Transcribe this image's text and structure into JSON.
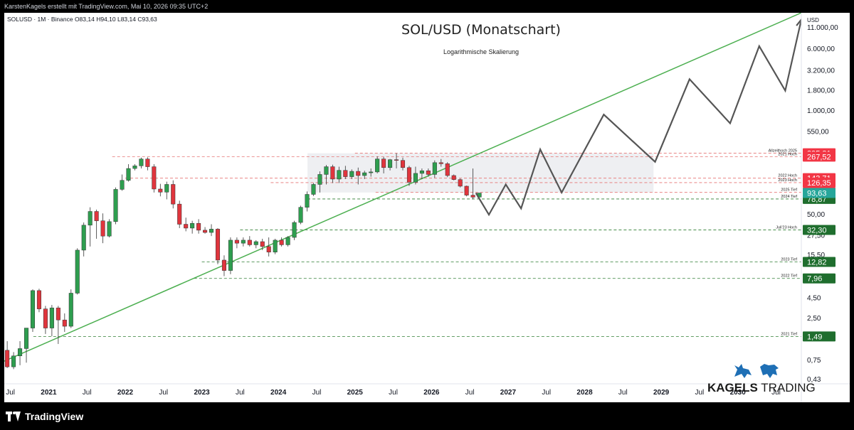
{
  "header": {
    "text": "KarstenKagels erstellt mit TradingView.com, Mai 10, 2026 09:35 UTC+2"
  },
  "chart_data": {
    "type": "candlestick",
    "symbol_line": "SOLUSD · 1M · Binance  O83,14  H94,10  L83,14  C93,63",
    "title": "SOL/USD (Monatschart)",
    "subtitle": "Logarithmische Skalierung",
    "currency": "USD",
    "yscale": "log",
    "ylim": [
      0.38,
      17000
    ],
    "xlim": [
      2020.42,
      2030.83
    ],
    "y_ticks": [
      {
        "v": 11000,
        "label": "11.000,00"
      },
      {
        "v": 6000,
        "label": "6.000,00"
      },
      {
        "v": 3200,
        "label": "3.200,00"
      },
      {
        "v": 1800,
        "label": "1.800,00"
      },
      {
        "v": 1000,
        "label": "1.000,00"
      },
      {
        "v": 550,
        "label": "550,00"
      },
      {
        "v": 50,
        "label": "50,00"
      },
      {
        "v": 27.5,
        "label": "27,50"
      },
      {
        "v": 15.5,
        "label": "15,50"
      },
      {
        "v": 4.5,
        "label": "4,50"
      },
      {
        "v": 2.5,
        "label": "2,50"
      },
      {
        "v": 0.75,
        "label": "0,75"
      },
      {
        "v": 0.43,
        "label": "0,43"
      }
    ],
    "x_ticks": [
      {
        "t": 2020.5,
        "label": "Jul",
        "bold": false
      },
      {
        "t": 2021.0,
        "label": "2021",
        "bold": true
      },
      {
        "t": 2021.5,
        "label": "Jul",
        "bold": false
      },
      {
        "t": 2022.0,
        "label": "2022",
        "bold": true
      },
      {
        "t": 2022.5,
        "label": "Jul",
        "bold": false
      },
      {
        "t": 2023.0,
        "label": "2023",
        "bold": true
      },
      {
        "t": 2023.5,
        "label": "Jul",
        "bold": false
      },
      {
        "t": 2024.0,
        "label": "2024",
        "bold": true
      },
      {
        "t": 2024.5,
        "label": "Jul",
        "bold": false
      },
      {
        "t": 2025.0,
        "label": "2025",
        "bold": true
      },
      {
        "t": 2025.5,
        "label": "Jul",
        "bold": false
      },
      {
        "t": 2026.0,
        "label": "2026",
        "bold": true
      },
      {
        "t": 2026.5,
        "label": "Jul",
        "bold": false
      },
      {
        "t": 2027.0,
        "label": "2027",
        "bold": true
      },
      {
        "t": 2027.5,
        "label": "Jul",
        "bold": false
      },
      {
        "t": 2028.0,
        "label": "2028",
        "bold": true
      },
      {
        "t": 2028.5,
        "label": "Jul",
        "bold": false
      },
      {
        "t": 2029.0,
        "label": "2029",
        "bold": true
      },
      {
        "t": 2029.5,
        "label": "Jul",
        "bold": false
      },
      {
        "t": 2030.0,
        "label": "2030",
        "bold": true
      },
      {
        "t": 2030.5,
        "label": "Jul",
        "bold": false
      }
    ],
    "candles": [
      {
        "t": "2020-05",
        "o": 0.6,
        "h": 1.6,
        "l": 0.55,
        "c": 1.0
      },
      {
        "t": "2020-06",
        "o": 1.0,
        "h": 1.3,
        "l": 0.6,
        "c": 0.62
      },
      {
        "t": "2020-07",
        "o": 0.62,
        "h": 0.95,
        "l": 0.58,
        "c": 0.85
      },
      {
        "t": "2020-08",
        "o": 0.85,
        "h": 1.3,
        "l": 0.65,
        "c": 1.05
      },
      {
        "t": "2020-09",
        "o": 1.05,
        "h": 1.9,
        "l": 0.7,
        "c": 1.9
      },
      {
        "t": "2020-10",
        "o": 1.9,
        "h": 5.8,
        "l": 1.7,
        "c": 5.6
      },
      {
        "t": "2020-11",
        "o": 5.6,
        "h": 5.9,
        "l": 3.0,
        "c": 3.3
      },
      {
        "t": "2020-12",
        "o": 3.3,
        "h": 3.6,
        "l": 1.6,
        "c": 1.9
      },
      {
        "t": "2021-01",
        "o": 1.9,
        "h": 3.7,
        "l": 1.5,
        "c": 3.4
      },
      {
        "t": "2021-02",
        "o": 3.4,
        "h": 3.6,
        "l": 1.2,
        "c": 2.4
      },
      {
        "t": "2021-03",
        "o": 2.4,
        "h": 2.9,
        "l": 1.7,
        "c": 2.0
      },
      {
        "t": "2021-04",
        "o": 2.0,
        "h": 5.8,
        "l": 1.9,
        "c": 5.2
      },
      {
        "t": "2021-05",
        "o": 5.2,
        "h": 19,
        "l": 5.0,
        "c": 18
      },
      {
        "t": "2021-06",
        "o": 18,
        "h": 40,
        "l": 15,
        "c": 37
      },
      {
        "t": "2021-07",
        "o": 37,
        "h": 62,
        "l": 20,
        "c": 55
      },
      {
        "t": "2021-08",
        "o": 55,
        "h": 58,
        "l": 25,
        "c": 42
      },
      {
        "t": "2021-09",
        "o": 42,
        "h": 52,
        "l": 22,
        "c": 27
      },
      {
        "t": "2021-10",
        "o": 27,
        "h": 44,
        "l": 26,
        "c": 41
      },
      {
        "t": "2021-11",
        "o": 41,
        "h": 110,
        "l": 38,
        "c": 104
      },
      {
        "t": "2021-12",
        "o": 104,
        "h": 160,
        "l": 100,
        "c": 135
      },
      {
        "t": "2022-01",
        "o": 135,
        "h": 215,
        "l": 130,
        "c": 190
      },
      {
        "t": "2022-02",
        "o": 190,
        "h": 215,
        "l": 180,
        "c": 205
      },
      {
        "t": "2022-03",
        "o": 205,
        "h": 260,
        "l": 190,
        "c": 250
      },
      {
        "t": "2022-04",
        "o": 250,
        "h": 262,
        "l": 180,
        "c": 200
      },
      {
        "t": "2022-05",
        "o": 200,
        "h": 215,
        "l": 95,
        "c": 105
      },
      {
        "t": "2022-06",
        "o": 105,
        "h": 122,
        "l": 85,
        "c": 96
      },
      {
        "t": "2022-07",
        "o": 96,
        "h": 130,
        "l": 78,
        "c": 120
      },
      {
        "t": "2022-08",
        "o": 120,
        "h": 135,
        "l": 60,
        "c": 68
      },
      {
        "t": "2022-09",
        "o": 68,
        "h": 75,
        "l": 34,
        "c": 38
      },
      {
        "t": "2022-10",
        "o": 38,
        "h": 46,
        "l": 31,
        "c": 34
      },
      {
        "t": "2022-11",
        "o": 34,
        "h": 42,
        "l": 29,
        "c": 39
      },
      {
        "t": "2022-12",
        "o": 39,
        "h": 44,
        "l": 29,
        "c": 32
      },
      {
        "t": "2023-01",
        "o": 32,
        "h": 35,
        "l": 29,
        "c": 30
      },
      {
        "t": "2023-02",
        "o": 30,
        "h": 38,
        "l": 27,
        "c": 33
      },
      {
        "t": "2023-03",
        "o": 33,
        "h": 34,
        "l": 12,
        "c": 13.5
      },
      {
        "t": "2023-04",
        "o": 13.5,
        "h": 15.5,
        "l": 8.5,
        "c": 10
      },
      {
        "t": "2023-05",
        "o": 10,
        "h": 26,
        "l": 9,
        "c": 24
      },
      {
        "t": "2023-06",
        "o": 24,
        "h": 26,
        "l": 19,
        "c": 22
      },
      {
        "t": "2023-07",
        "o": 22,
        "h": 26,
        "l": 20,
        "c": 24
      },
      {
        "t": "2023-08",
        "o": 24,
        "h": 27,
        "l": 20,
        "c": 21
      },
      {
        "t": "2023-09",
        "o": 21,
        "h": 24,
        "l": 19,
        "c": 23
      },
      {
        "t": "2023-10",
        "o": 23,
        "h": 25,
        "l": 18,
        "c": 20
      },
      {
        "t": "2023-11",
        "o": 20,
        "h": 26,
        "l": 15,
        "c": 17
      },
      {
        "t": "2023-12",
        "o": 17,
        "h": 25,
        "l": 16,
        "c": 24
      },
      {
        "t": "2024-01",
        "o": 24,
        "h": 26,
        "l": 20,
        "c": 21
      },
      {
        "t": "2024-02",
        "o": 21,
        "h": 27,
        "l": 20,
        "c": 26
      },
      {
        "t": "2024-03",
        "o": 26,
        "h": 42,
        "l": 24,
        "c": 40
      },
      {
        "t": "2024-04",
        "o": 40,
        "h": 65,
        "l": 38,
        "c": 62
      },
      {
        "t": "2024-05",
        "o": 62,
        "h": 98,
        "l": 55,
        "c": 90
      },
      {
        "t": "2024-06",
        "o": 90,
        "h": 125,
        "l": 86,
        "c": 120
      },
      {
        "t": "2024-07",
        "o": 120,
        "h": 175,
        "l": 95,
        "c": 160
      },
      {
        "t": "2024-08",
        "o": 160,
        "h": 210,
        "l": 120,
        "c": 200
      },
      {
        "t": "2024-09",
        "o": 200,
        "h": 212,
        "l": 125,
        "c": 140
      },
      {
        "t": "2024-10",
        "o": 140,
        "h": 200,
        "l": 125,
        "c": 180
      },
      {
        "t": "2024-11",
        "o": 180,
        "h": 205,
        "l": 140,
        "c": 150
      },
      {
        "t": "2024-12",
        "o": 150,
        "h": 185,
        "l": 140,
        "c": 175
      },
      {
        "t": "2025-01",
        "o": 175,
        "h": 195,
        "l": 120,
        "c": 155
      },
      {
        "t": "2025-02",
        "o": 155,
        "h": 178,
        "l": 140,
        "c": 168
      },
      {
        "t": "2025-03",
        "o": 168,
        "h": 190,
        "l": 150,
        "c": 172
      },
      {
        "t": "2025-04",
        "o": 172,
        "h": 270,
        "l": 165,
        "c": 250
      },
      {
        "t": "2025-05",
        "o": 250,
        "h": 265,
        "l": 165,
        "c": 195
      },
      {
        "t": "2025-06",
        "o": 195,
        "h": 250,
        "l": 180,
        "c": 245
      },
      {
        "t": "2025-07",
        "o": 245,
        "h": 295,
        "l": 190,
        "c": 240
      },
      {
        "t": "2025-08",
        "o": 240,
        "h": 260,
        "l": 180,
        "c": 195
      },
      {
        "t": "2025-09",
        "o": 195,
        "h": 205,
        "l": 115,
        "c": 128
      },
      {
        "t": "2025-10",
        "o": 128,
        "h": 200,
        "l": 120,
        "c": 165
      },
      {
        "t": "2025-11",
        "o": 165,
        "h": 190,
        "l": 140,
        "c": 178
      },
      {
        "t": "2025-12",
        "o": 178,
        "h": 190,
        "l": 150,
        "c": 160
      },
      {
        "t": "2026-01",
        "o": 160,
        "h": 240,
        "l": 145,
        "c": 225
      },
      {
        "t": "2026-02",
        "o": 225,
        "h": 250,
        "l": 200,
        "c": 218
      },
      {
        "t": "2026-03",
        "o": 218,
        "h": 228,
        "l": 148,
        "c": 155
      },
      {
        "t": "2026-04",
        "o": 155,
        "h": 160,
        "l": 135,
        "c": 138
      },
      {
        "t": "2026-05",
        "o": 138,
        "h": 142,
        "l": 110,
        "c": 114
      },
      {
        "t": "2026-06",
        "o": 114,
        "h": 116,
        "l": 85,
        "c": 88
      },
      {
        "t": "2026-07",
        "o": 88,
        "h": 190,
        "l": 78,
        "c": 83
      },
      {
        "t": "2026-08",
        "o": 83.14,
        "h": 94.1,
        "l": 83.14,
        "c": 93.63
      }
    ],
    "projection": [
      {
        "t": 2026.58,
        "v": 93.63
      },
      {
        "t": 2026.75,
        "v": 50
      },
      {
        "t": 2026.97,
        "v": 120
      },
      {
        "t": 2027.17,
        "v": 60
      },
      {
        "t": 2027.42,
        "v": 330
      },
      {
        "t": 2027.7,
        "v": 95
      },
      {
        "t": 2028.25,
        "v": 900
      },
      {
        "t": 2028.92,
        "v": 230
      },
      {
        "t": 2029.37,
        "v": 2500
      },
      {
        "t": 2029.9,
        "v": 700
      },
      {
        "t": 2030.28,
        "v": 6500
      },
      {
        "t": 2030.62,
        "v": 1800
      },
      {
        "t": 2030.83,
        "v": 14000
      }
    ],
    "trendline": {
      "t1": 2019.87,
      "v1": 0.43,
      "t2": 2030.83,
      "v2": 17000
    },
    "range_box": {
      "t1": 2024.38,
      "t2": 2028.9,
      "v1": 295,
      "v2": 95
    },
    "levels": [
      {
        "v": 295.31,
        "label": "Allzeithoch 2025",
        "badge": "295,31",
        "color": "#f23645",
        "style": "red",
        "t_start": 2025.0
      },
      {
        "v": 267.52,
        "label": "2021 Hoch",
        "badge": "267,52",
        "color": "#f23645",
        "style": "red",
        "t_start": 2021.83
      },
      {
        "v": 143.71,
        "label": "2022 Hoch",
        "badge": "143,71",
        "color": "#f23645",
        "style": "red",
        "t_start": 2022.0
      },
      {
        "v": 126.35,
        "label": "2023 Hoch",
        "badge": "126,35",
        "color": "#f23645",
        "style": "red",
        "t_start": 2023.9
      },
      {
        "v": 95.31,
        "label": "2025 Tief",
        "badge": "95,31",
        "color": "#f23645",
        "style": "red",
        "t_start": 2025.27
      },
      {
        "v": 78.87,
        "label": "2024 Tief",
        "badge": "78,87",
        "color": "#1f6e2e",
        "style": "green",
        "t_start": 2024.38
      },
      {
        "v": 32.3,
        "label": "Juli'23 Hoch",
        "badge": "32,30",
        "color": "#1f6e2e",
        "style": "green",
        "t_start": 2023.5
      },
      {
        "v": 12.82,
        "label": "2023 Tief",
        "badge": "12,82",
        "color": "#1f6e2e",
        "style": "green",
        "t_start": 2023.0
      },
      {
        "v": 7.96,
        "label": "2022 Tief",
        "badge": "7,96",
        "color": "#1f6e2e",
        "style": "green",
        "t_start": 2022.9
      },
      {
        "v": 1.49,
        "label": "2021 Tief",
        "badge": "1,49",
        "color": "#1f6e2e",
        "style": "green",
        "t_start": 2020.8
      }
    ],
    "current_price": {
      "v": 93.63,
      "badge": "93,63",
      "color": "#26a69a"
    },
    "colors": {
      "up": "#2e9e4f",
      "down": "#e0353d",
      "trend": "#4caf50",
      "projection": "#555555"
    }
  },
  "brand": {
    "name_bold": "KAGELS",
    "name_rest": " TRADING"
  },
  "footer": {
    "logo_text": "TradingView"
  }
}
